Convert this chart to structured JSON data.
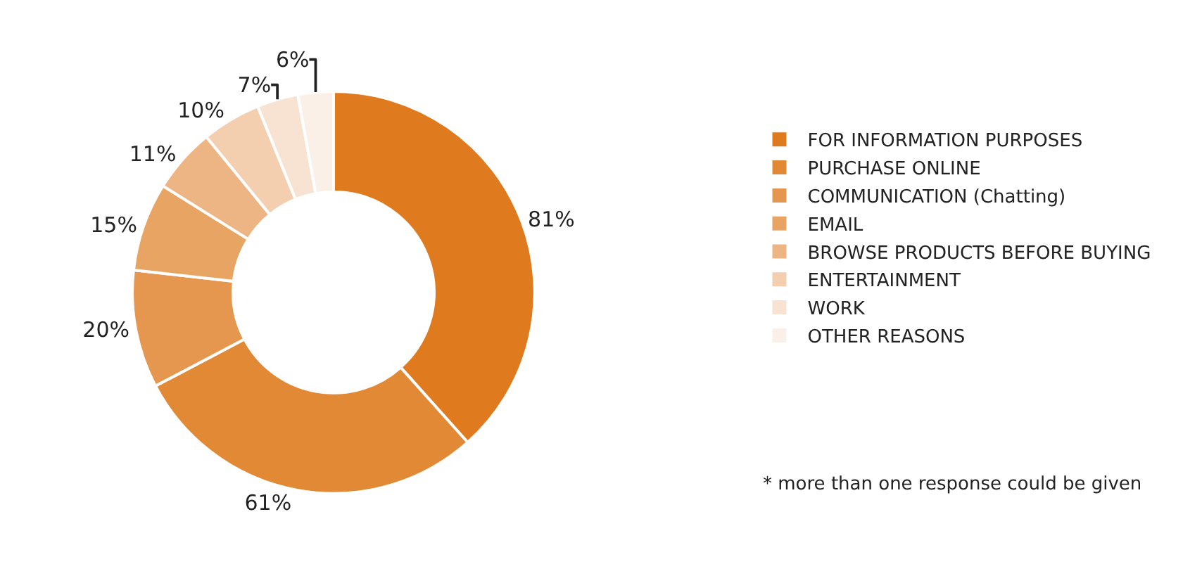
{
  "chart_data": {
    "type": "donut",
    "categories": [
      "FOR INFORMATION PURPOSES",
      "PURCHASE ONLINE",
      "COMMUNICATION (Chatting)",
      "EMAIL",
      "BROWSE PRODUCTS BEFORE BUYING",
      "ENTERTAINMENT",
      "WORK",
      "OTHER REASONS"
    ],
    "values": [
      81,
      61,
      20,
      15,
      11,
      10,
      7,
      6
    ],
    "value_labels": [
      "81%",
      "61%",
      "20%",
      "15%",
      "11%",
      "10%",
      "7%",
      "6%"
    ],
    "colors": [
      "#df7b1e",
      "#e28935",
      "#e5974f",
      "#e8a463",
      "#edb584",
      "#f3cfb0",
      "#f8e3d3",
      "#fbf0e7"
    ],
    "legend": "right",
    "annotations": [
      "* more than one response could be given"
    ]
  }
}
